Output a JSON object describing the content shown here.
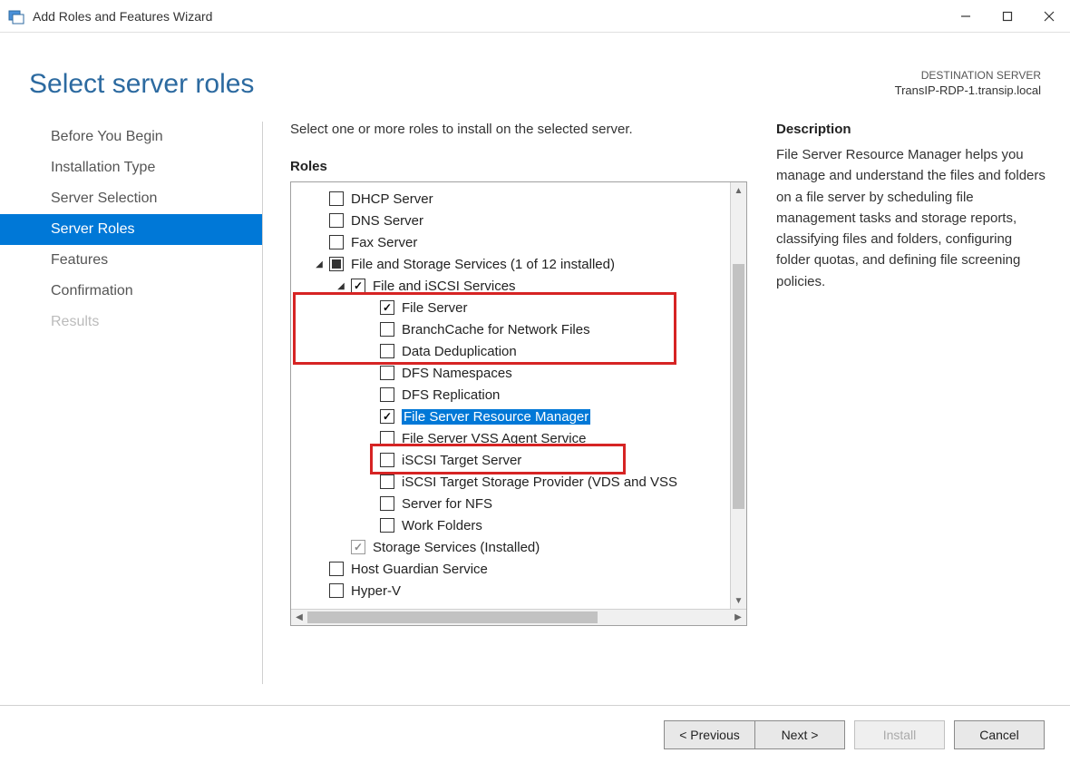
{
  "window": {
    "title": "Add Roles and Features Wizard"
  },
  "header": {
    "page_title": "Select server roles",
    "dest_label": "DESTINATION SERVER",
    "dest_name": "TransIP-RDP-1.transip.local"
  },
  "nav": {
    "items": [
      {
        "label": "Before You Begin",
        "state": "normal"
      },
      {
        "label": "Installation Type",
        "state": "normal"
      },
      {
        "label": "Server Selection",
        "state": "normal"
      },
      {
        "label": "Server Roles",
        "state": "active"
      },
      {
        "label": "Features",
        "state": "normal"
      },
      {
        "label": "Confirmation",
        "state": "normal"
      },
      {
        "label": "Results",
        "state": "disabled"
      }
    ]
  },
  "content": {
    "instruction": "Select one or more roles to install on the selected server.",
    "roles_label": "Roles",
    "desc_label": "Description",
    "description": "File Server Resource Manager helps you manage and understand the files and folders on a file server by scheduling file management tasks and storage reports, classifying files and folders, configuring folder quotas, and defining file screening policies."
  },
  "tree": [
    {
      "indent": 1,
      "expander": "none",
      "check": "unchecked",
      "label": "DHCP Server"
    },
    {
      "indent": 1,
      "expander": "none",
      "check": "unchecked",
      "label": "DNS Server"
    },
    {
      "indent": 1,
      "expander": "none",
      "check": "unchecked",
      "label": "Fax Server"
    },
    {
      "indent": 1,
      "expander": "open",
      "check": "indeterminate",
      "label": "File and Storage Services (1 of 12 installed)"
    },
    {
      "indent": 2,
      "expander": "open",
      "check": "checked",
      "label": "File and iSCSI Services"
    },
    {
      "indent": 3,
      "expander": "none",
      "check": "checked",
      "label": "File Server"
    },
    {
      "indent": 3,
      "expander": "none",
      "check": "unchecked",
      "label": "BranchCache for Network Files"
    },
    {
      "indent": 3,
      "expander": "none",
      "check": "unchecked",
      "label": "Data Deduplication"
    },
    {
      "indent": 3,
      "expander": "none",
      "check": "unchecked",
      "label": "DFS Namespaces"
    },
    {
      "indent": 3,
      "expander": "none",
      "check": "unchecked",
      "label": "DFS Replication"
    },
    {
      "indent": 3,
      "expander": "none",
      "check": "checked",
      "label": "File Server Resource Manager",
      "selected": true
    },
    {
      "indent": 3,
      "expander": "none",
      "check": "unchecked",
      "label": "File Server VSS Agent Service"
    },
    {
      "indent": 3,
      "expander": "none",
      "check": "unchecked",
      "label": "iSCSI Target Server"
    },
    {
      "indent": 3,
      "expander": "none",
      "check": "unchecked",
      "label": "iSCSI Target Storage Provider (VDS and VSS"
    },
    {
      "indent": 3,
      "expander": "none",
      "check": "unchecked",
      "label": "Server for NFS"
    },
    {
      "indent": 3,
      "expander": "none",
      "check": "unchecked",
      "label": "Work Folders"
    },
    {
      "indent": 2,
      "expander": "none",
      "check": "checked-disabled",
      "label": "Storage Services (Installed)"
    },
    {
      "indent": 1,
      "expander": "none",
      "check": "unchecked",
      "label": "Host Guardian Service"
    },
    {
      "indent": 1,
      "expander": "none",
      "check": "unchecked",
      "label": "Hyper-V"
    }
  ],
  "footer": {
    "previous": "< Previous",
    "next": "Next >",
    "install": "Install",
    "cancel": "Cancel"
  },
  "colors": {
    "accent": "#0078d7",
    "title": "#2c6aa0",
    "highlight": "#d62424"
  }
}
